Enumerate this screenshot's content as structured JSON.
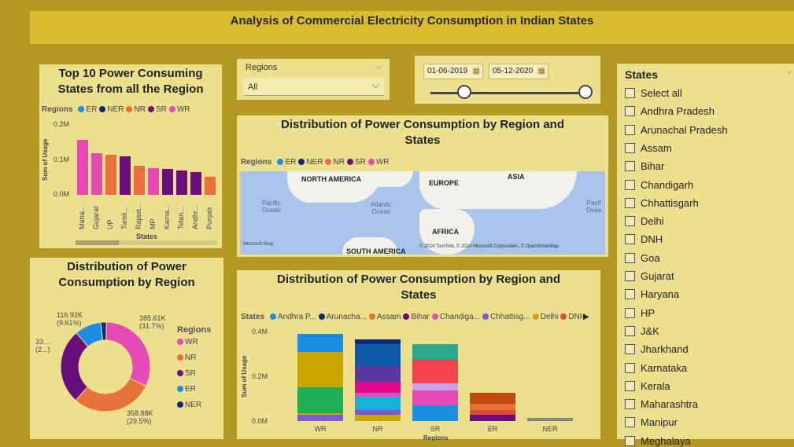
{
  "header": {
    "title": "Analysis of Commercial Electricity Consumption in Indian States"
  },
  "top10": {
    "title": "Top 10 Power Consuming States from all the Region",
    "legend_title": "Regions",
    "legend": [
      {
        "label": "ER",
        "color": "#1a8fe0"
      },
      {
        "label": "NER",
        "color": "#0d2a7a"
      },
      {
        "label": "NR",
        "color": "#e8703a"
      },
      {
        "label": "SR",
        "color": "#6a0d7d"
      },
      {
        "label": "WR",
        "color": "#e64ab5"
      }
    ],
    "ylabel": "Sum of Usage",
    "xlabel": "States",
    "yticks": [
      "0.2M",
      "0.1M",
      "0.0M"
    ]
  },
  "region_slicer": {
    "label": "Regions",
    "value": "All"
  },
  "date_slicer": {
    "start": "01-06-2019",
    "end": "05-12-2020",
    "start_pos": 0,
    "end_pos": 1
  },
  "map_panel": {
    "title": "Distribution of Power Consumption by Region and States",
    "legend_title": "Regions",
    "legend": [
      {
        "label": "ER",
        "color": "#1a8fe0"
      },
      {
        "label": "NER",
        "color": "#0d2a7a"
      },
      {
        "label": "NR",
        "color": "#e8703a"
      },
      {
        "label": "SR",
        "color": "#6a0d7d"
      },
      {
        "label": "WR",
        "color": "#e64ab5"
      }
    ],
    "labels": {
      "north_america": "NORTH AMERICA",
      "europe": "EUROPE",
      "asia": "ASIA",
      "africa": "AFRICA",
      "south_america": "SOUTH AMERICA",
      "pacific_left": "Pacific\nOcean",
      "atlantic": "Atlantic\nOcean",
      "pacific_right": "Pacif\nOcea"
    },
    "brand": "Microsoft Bing",
    "copyright": "© 2024 TomTom, © 2024 Microsoft Corporation, © OpenStreetMap"
  },
  "donut_panel": {
    "title": "Distribution of Power Consumption by Region",
    "legend_title": "Regions",
    "legend": [
      {
        "label": "WR",
        "color": "#e64ab5"
      },
      {
        "label": "NR",
        "color": "#e8703a"
      },
      {
        "label": "SR",
        "color": "#6a0d7d"
      },
      {
        "label": "ER",
        "color": "#1a8fe0"
      },
      {
        "label": "NER",
        "color": "#0d2a7a"
      }
    ],
    "labels": {
      "wr": "385.61K\n(31.7%)",
      "nr": "358.88K\n(29.5%)",
      "sr": "33...\n(2...)",
      "er": "116.92K\n(9.61%)"
    }
  },
  "stacked_panel": {
    "title": "Distribution of Power Consumption by Region and States",
    "legend_title": "States",
    "legend": [
      {
        "label": "Andhra P...",
        "color": "#1a8fe0"
      },
      {
        "label": "Arunacha...",
        "color": "#0d2a7a"
      },
      {
        "label": "Assam",
        "color": "#e8703a"
      },
      {
        "label": "Bihar",
        "color": "#6a0d7d"
      },
      {
        "label": "Chandiga...",
        "color": "#e64ab5"
      },
      {
        "label": "Chhattisg...",
        "color": "#7a5bd0"
      },
      {
        "label": "Delhi",
        "color": "#c9a500"
      },
      {
        "label": "DNH",
        "color": "#e04a3a"
      }
    ],
    "ylabel": "Sum of Usage",
    "xlabel": "Regions",
    "yticks": [
      "0.4M",
      "0.2M",
      "0.0M"
    ],
    "categories": [
      "WR",
      "NR",
      "SR",
      "ER",
      "NER"
    ]
  },
  "states_slicer": {
    "title": "States",
    "items": [
      "Select all",
      "Andhra Pradesh",
      "Arunachal Pradesh",
      "Assam",
      "Bihar",
      "Chandigarh",
      "Chhattisgarh",
      "Delhi",
      "DNH",
      "Goa",
      "Gujarat",
      "Haryana",
      "HP",
      "J&K",
      "Jharkhand",
      "Karnataka",
      "Kerala",
      "Maharashtra",
      "Manipur",
      "Meghalaya"
    ]
  },
  "chart_data": [
    {
      "type": "bar",
      "title": "Top 10 Power Consuming States from all the Region",
      "xlabel": "States",
      "ylabel": "Sum of Usage",
      "categories": [
        "Maha...",
        "Gujarat",
        "UP",
        "Tamil...",
        "Rajast...",
        "MP",
        "Karna...",
        "Telan...",
        "Andhr...",
        "Punjab"
      ],
      "regions": [
        "WR",
        "WR",
        "NR",
        "SR",
        "NR",
        "WR",
        "SR",
        "SR",
        "SR",
        "NR"
      ],
      "values": [
        0.16,
        0.12,
        0.115,
        0.112,
        0.083,
        0.077,
        0.074,
        0.07,
        0.067,
        0.052
      ],
      "ylim": [
        0,
        0.2
      ],
      "yticks": [
        "0.2M",
        "0.1M",
        "0.0M"
      ],
      "unit": "M"
    },
    {
      "type": "pie",
      "title": "Distribution of Power Consumption by Region",
      "labels": [
        "WR",
        "NR",
        "SR",
        "ER",
        "NER"
      ],
      "values": [
        385.61,
        358.88,
        330.0,
        116.92,
        24.0
      ],
      "unit": "K",
      "colors": [
        "#e64ab5",
        "#e8703a",
        "#6a0d7d",
        "#1a8fe0",
        "#0d2a7a"
      ]
    },
    {
      "type": "bar",
      "stacked": true,
      "title": "Distribution of Power Consumption by Region and States",
      "xlabel": "Regions",
      "ylabel": "Sum of Usage",
      "categories": [
        "WR",
        "NR",
        "SR",
        "ER",
        "NER"
      ],
      "ylim": [
        0,
        0.4
      ],
      "yticks": [
        "0.4M",
        "0.2M",
        "0.0M"
      ],
      "unit": "M",
      "stacks": [
        [
          {
            "v": 0.03,
            "c": "#7a5bd0"
          },
          {
            "v": 0.005,
            "c": "#c9a500"
          },
          {
            "v": 0.12,
            "c": "#1fae55"
          },
          {
            "v": 0.16,
            "c": "#c9a500"
          },
          {
            "v": 0.08,
            "c": "#1a8fe0"
          }
        ],
        [
          {
            "v": 0.03,
            "c": "#c9a500"
          },
          {
            "v": 0.02,
            "c": "#7a5bd0"
          },
          {
            "v": 0.06,
            "c": "#19b0d8"
          },
          {
            "v": 0.02,
            "c": "#e64ab5"
          },
          {
            "v": 0.05,
            "c": "#e00a8a"
          },
          {
            "v": 0.07,
            "c": "#5a3aa0"
          },
          {
            "v": 0.1,
            "c": "#0d5aa8"
          },
          {
            "v": 0.02,
            "c": "#0d2a7a"
          }
        ],
        [
          {
            "v": 0.07,
            "c": "#1a8fe0"
          },
          {
            "v": 0.07,
            "c": "#e64ab5"
          },
          {
            "v": 0.03,
            "c": "#c9a0f0"
          },
          {
            "v": 0.11,
            "c": "#f0434d"
          },
          {
            "v": 0.07,
            "c": "#2aa88a"
          }
        ],
        [
          {
            "v": 0.03,
            "c": "#6a0d7d"
          },
          {
            "v": 0.02,
            "c": "#e04a3a"
          },
          {
            "v": 0.03,
            "c": "#e8703a"
          },
          {
            "v": 0.05,
            "c": "#c04a10"
          }
        ],
        [
          {
            "v": 0.005,
            "c": "#1a8fe0"
          },
          {
            "v": 0.005,
            "c": "#e8703a"
          },
          {
            "v": 0.005,
            "c": "#2aa88a"
          }
        ]
      ]
    }
  ]
}
